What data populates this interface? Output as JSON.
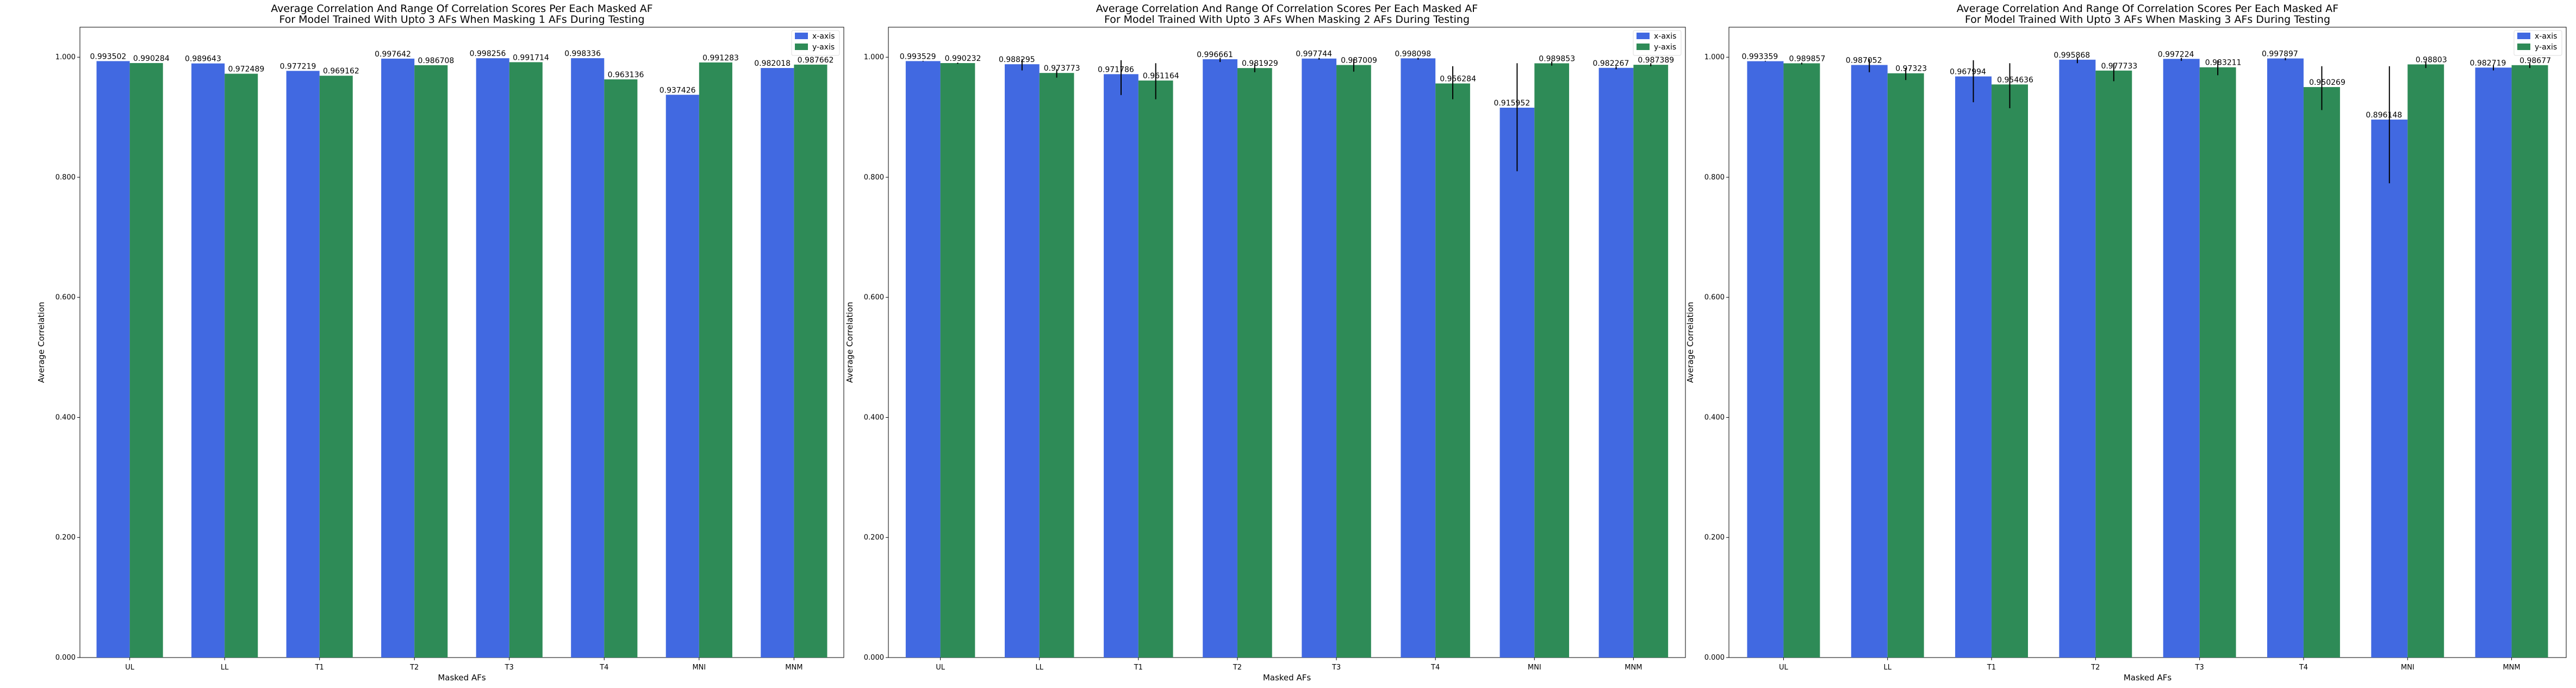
{
  "colors": {
    "x": "#4169e1",
    "y": "#2e8b57",
    "err": "#000000"
  },
  "chart_data": [
    {
      "type": "bar",
      "title": [
        "Average Correlation And Range Of Correlation Scores Per Each Masked AF",
        "For Model Trained With Upto 3 AFs When Masking 1 AFs During Testing"
      ],
      "xlabel": "Masked AFs",
      "ylabel": "Average Correlation",
      "ylim": [
        0,
        1.05
      ],
      "yticks": [
        "0.000",
        "0.200",
        "0.400",
        "0.600",
        "0.800",
        "1.000"
      ],
      "legend": "top-right",
      "categories": [
        "UL",
        "LL",
        "T1",
        "T2",
        "T3",
        "T4",
        "MNI",
        "MNM"
      ],
      "series": [
        {
          "name": "x-axis",
          "values": [
            0.993502,
            0.989643,
            0.977219,
            0.997642,
            0.998256,
            0.998336,
            0.937426,
            0.982018
          ],
          "labels": [
            "0.993502",
            "0.989643",
            "0.977219",
            "0.997642",
            "0.998256",
            "0.998336",
            "0.937426",
            "0.982018"
          ],
          "err": [
            [
              0.993502,
              0.993502
            ],
            [
              0.989643,
              0.989643
            ],
            [
              0.977219,
              0.977219
            ],
            [
              0.997642,
              0.997642
            ],
            [
              0.998256,
              0.998256
            ],
            [
              0.998336,
              0.998336
            ],
            [
              0.937426,
              0.937426
            ],
            [
              0.982018,
              0.982018
            ]
          ]
        },
        {
          "name": "y-axis",
          "values": [
            0.990284,
            0.972489,
            0.969162,
            0.986708,
            0.991714,
            0.963136,
            0.991283,
            0.987662
          ],
          "labels": [
            "0.990284",
            "0.972489",
            "0.969162",
            "0.986708",
            "0.991714",
            "0.963136",
            "0.991283",
            "0.987662"
          ],
          "err": [
            [
              0.990284,
              0.990284
            ],
            [
              0.972489,
              0.972489
            ],
            [
              0.969162,
              0.969162
            ],
            [
              0.986708,
              0.986708
            ],
            [
              0.991714,
              0.991714
            ],
            [
              0.963136,
              0.963136
            ],
            [
              0.991283,
              0.991283
            ],
            [
              0.987662,
              0.987662
            ]
          ]
        }
      ]
    },
    {
      "type": "bar",
      "title": [
        "Average Correlation And Range Of Correlation Scores Per Each Masked AF",
        "For Model Trained With Upto 3 AFs When Masking 2 AFs During Testing"
      ],
      "xlabel": "Masked AFs",
      "ylabel": "Average Correlation",
      "ylim": [
        0,
        1.05
      ],
      "yticks": [
        "0.000",
        "0.200",
        "0.400",
        "0.600",
        "0.800",
        "1.000"
      ],
      "legend": "top-right",
      "categories": [
        "UL",
        "LL",
        "T1",
        "T2",
        "T3",
        "T4",
        "MNI",
        "MNM"
      ],
      "series": [
        {
          "name": "x-axis",
          "values": [
            0.993529,
            0.988295,
            0.971786,
            0.996661,
            0.997744,
            0.998098,
            0.915952,
            0.982267
          ],
          "labels": [
            "0.993529",
            "0.988295",
            "0.971786",
            "0.996661",
            "0.997744",
            "0.998098",
            "0.915952",
            "0.982267"
          ],
          "err": [
            [
              0.993,
              0.994
            ],
            [
              0.978,
              0.997
            ],
            [
              0.937,
              0.995
            ],
            [
              0.992,
              0.999
            ],
            [
              0.996,
              0.999
            ],
            [
              0.996,
              0.999
            ],
            [
              0.81,
              0.99
            ],
            [
              0.98,
              0.985
            ]
          ]
        },
        {
          "name": "y-axis",
          "values": [
            0.990232,
            0.973773,
            0.961164,
            0.981929,
            0.987009,
            0.956284,
            0.989853,
            0.987389
          ],
          "labels": [
            "0.990232",
            "0.973773",
            "0.961164",
            "0.981929",
            "0.987009",
            "0.956284",
            "0.989853",
            "0.987389"
          ],
          "err": [
            [
              0.989,
              0.991
            ],
            [
              0.966,
              0.98
            ],
            [
              0.93,
              0.99
            ],
            [
              0.975,
              0.99
            ],
            [
              0.976,
              0.997
            ],
            [
              0.93,
              0.985
            ],
            [
              0.986,
              0.993
            ],
            [
              0.985,
              0.99
            ]
          ]
        }
      ]
    },
    {
      "type": "bar",
      "title": [
        "Average Correlation And Range Of Correlation Scores Per Each Masked AF",
        "For Model Trained With Upto 3 AFs When Masking 3 AFs During Testing"
      ],
      "xlabel": "Masked AFs",
      "ylabel": "Average Correlation",
      "ylim": [
        0,
        1.05
      ],
      "yticks": [
        "0.000",
        "0.200",
        "0.400",
        "0.600",
        "0.800",
        "1.000"
      ],
      "legend": "top-right",
      "categories": [
        "UL",
        "LL",
        "T1",
        "T2",
        "T3",
        "T4",
        "MNI",
        "MNM"
      ],
      "series": [
        {
          "name": "x-axis",
          "values": [
            0.993359,
            0.987052,
            0.967994,
            0.995868,
            0.997224,
            0.997897,
            0.896148,
            0.982719
          ],
          "labels": [
            "0.993359",
            "0.987052",
            "0.967994",
            "0.995868",
            "0.997224",
            "0.997897",
            "0.896148",
            "0.982719"
          ],
          "err": [
            [
              0.993,
              0.994
            ],
            [
              0.975,
              0.997
            ],
            [
              0.925,
              0.995
            ],
            [
              0.99,
              0.999
            ],
            [
              0.994,
              0.999
            ],
            [
              0.995,
              0.999
            ],
            [
              0.79,
              0.985
            ],
            [
              0.978,
              0.987
            ]
          ]
        },
        {
          "name": "y-axis",
          "values": [
            0.989857,
            0.97323,
            0.954636,
            0.977733,
            0.983211,
            0.950269,
            0.98803,
            0.98677
          ],
          "labels": [
            "0.989857",
            "0.97323",
            "0.954636",
            "0.977733",
            "0.983211",
            "0.950269",
            "0.98803",
            "0.98677"
          ],
          "err": [
            [
              0.988,
              0.991
            ],
            [
              0.962,
              0.982
            ],
            [
              0.915,
              0.99
            ],
            [
              0.96,
              0.99
            ],
            [
              0.97,
              0.995
            ],
            [
              0.912,
              0.985
            ],
            [
              0.982,
              0.993
            ],
            [
              0.982,
              0.99
            ]
          ]
        }
      ]
    }
  ]
}
